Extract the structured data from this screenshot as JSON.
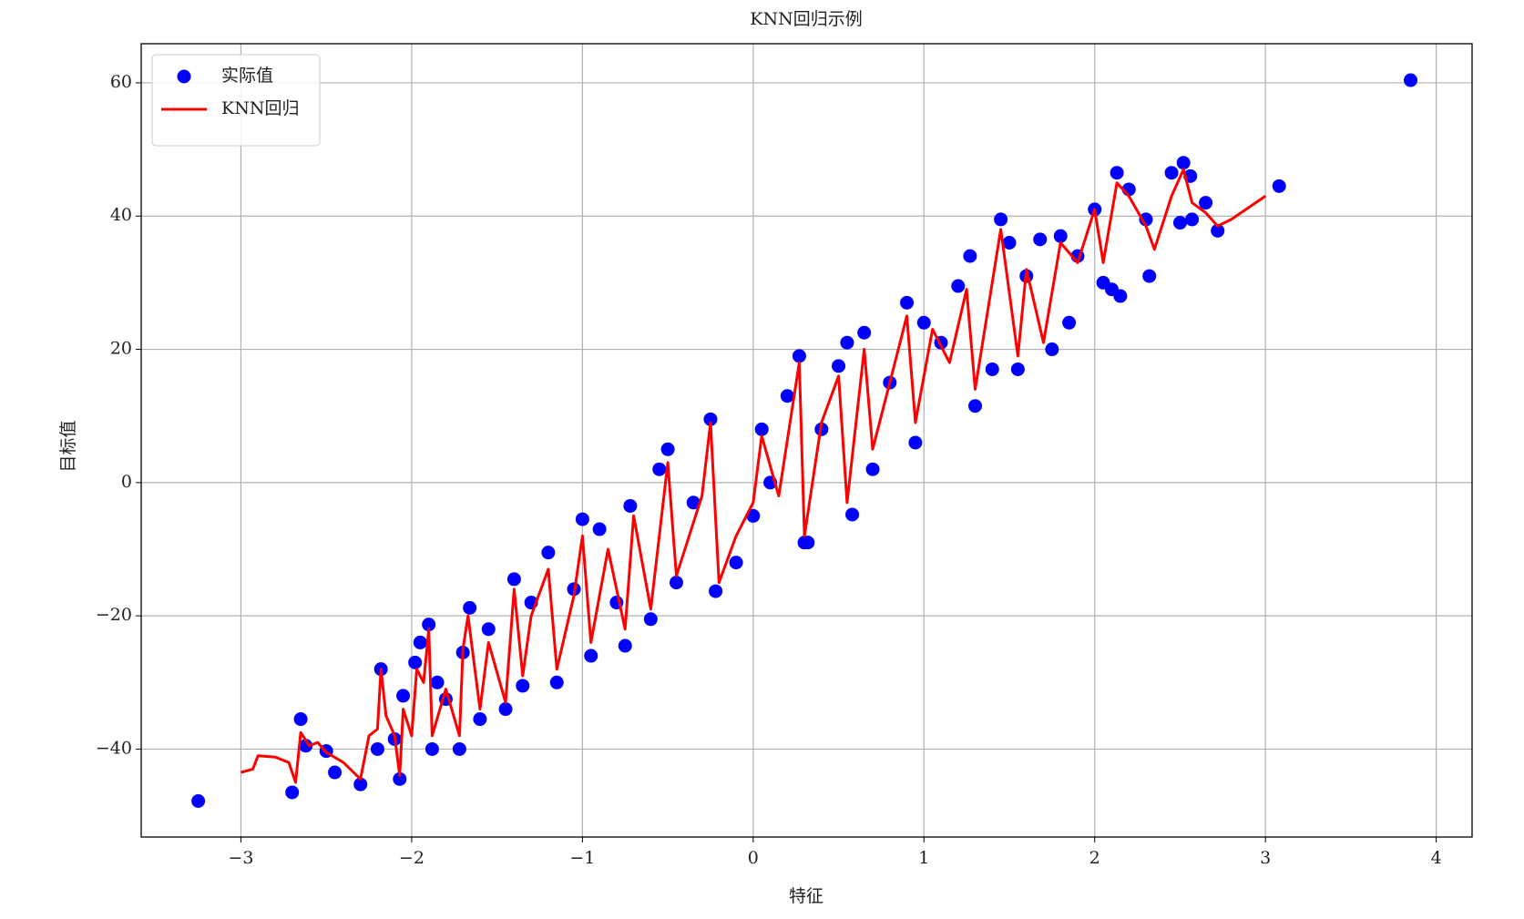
{
  "chart_data": {
    "type": "scatter",
    "title": "KNN回归示例",
    "x_label": "特征",
    "y_label": "目标值",
    "xlim": [
      -3.584,
      4.21
    ],
    "ylim": [
      -53.2,
      65.87
    ],
    "xticks": [
      {
        "value": -3,
        "label": "−3"
      },
      {
        "value": -2,
        "label": "−2"
      },
      {
        "value": -1,
        "label": "−1"
      },
      0,
      1,
      2,
      3,
      4
    ],
    "yticks": [
      {
        "value": -40,
        "label": "−40"
      },
      {
        "value": -20,
        "label": "−20"
      },
      0,
      20,
      40,
      60
    ],
    "grid": true,
    "legend": "upper left",
    "series": [
      {
        "name": "实际值",
        "type": "scatter",
        "color": "#0000ff",
        "x": [
          -3.25,
          -2.7,
          -2.65,
          -2.62,
          -2.5,
          -2.45,
          -2.3,
          -2.2,
          -2.18,
          -2.1,
          -2.07,
          -2.05,
          -1.98,
          -1.95,
          -1.9,
          -1.88,
          -1.85,
          -1.8,
          -1.72,
          -1.7,
          -1.66,
          -1.6,
          -1.55,
          -1.45,
          -1.4,
          -1.35,
          -1.3,
          -1.2,
          -1.15,
          -1.05,
          -1.0,
          -0.95,
          -0.9,
          -0.8,
          -0.75,
          -0.72,
          -0.6,
          -0.55,
          -0.5,
          -0.45,
          -0.35,
          -0.25,
          -0.22,
          -0.1,
          0,
          0.05,
          0.1,
          0.2,
          0.27,
          0.3,
          0.32,
          0.4,
          0.5,
          0.55,
          0.58,
          0.65,
          0.7,
          0.8,
          0.9,
          0.95,
          1.0,
          1.1,
          1.2,
          1.27,
          1.3,
          1.4,
          1.45,
          1.5,
          1.55,
          1.6,
          1.68,
          1.75,
          1.8,
          1.85,
          1.9,
          2.0,
          2.05,
          2.1,
          2.13,
          2.15,
          2.2,
          2.3,
          2.32,
          2.45,
          2.5,
          2.52,
          2.56,
          2.57,
          2.65,
          2.72,
          3.08,
          3.85
        ],
        "values": [
          -47.8,
          -46.5,
          -35.5,
          -39.5,
          -40.3,
          -43.5,
          -45.3,
          -40,
          -28,
          -38.5,
          -44.5,
          -32,
          -27,
          -24,
          -21.3,
          -40,
          -30,
          -32.5,
          -40,
          -25.5,
          -18.8,
          -35.5,
          -22,
          -34,
          -14.5,
          -30.5,
          -18,
          -10.5,
          -30,
          -16,
          -5.5,
          -26,
          -7,
          -18,
          -24.5,
          -3.5,
          -20.5,
          2,
          5,
          -15,
          -3,
          9.5,
          -16.3,
          -12,
          -5,
          8,
          0,
          13,
          19,
          -9,
          -9,
          8,
          17.5,
          21,
          -4.8,
          22.5,
          2,
          15,
          27,
          6,
          24,
          21,
          29.5,
          34,
          11.5,
          17,
          39.5,
          36,
          17,
          31,
          36.5,
          20,
          37,
          24,
          34,
          41,
          30,
          29,
          46.5,
          28,
          44,
          39.5,
          31,
          46.5,
          39,
          48,
          46,
          39.5,
          42,
          37.8,
          44.5,
          60.4
        ]
      },
      {
        "name": "KNN回归",
        "type": "line",
        "color": "#ff0000",
        "x": [
          -3,
          -2.93,
          -2.9,
          -2.8,
          -2.72,
          -2.68,
          -2.65,
          -2.6,
          -2.55,
          -2.5,
          -2.4,
          -2.3,
          -2.25,
          -2.2,
          -2.18,
          -2.15,
          -2.1,
          -2.07,
          -2.05,
          -2.0,
          -1.97,
          -1.93,
          -1.9,
          -1.88,
          -1.8,
          -1.72,
          -1.7,
          -1.67,
          -1.6,
          -1.55,
          -1.45,
          -1.4,
          -1.35,
          -1.3,
          -1.2,
          -1.15,
          -1.05,
          -1.0,
          -0.95,
          -0.85,
          -0.75,
          -0.7,
          -0.6,
          -0.5,
          -0.45,
          -0.3,
          -0.25,
          -0.2,
          -0.1,
          0,
          0.05,
          0.15,
          0.27,
          0.3,
          0.4,
          0.5,
          0.55,
          0.65,
          0.7,
          0.8,
          0.9,
          0.95,
          1.05,
          1.15,
          1.25,
          1.3,
          1.45,
          1.55,
          1.6,
          1.7,
          1.8,
          1.9,
          2.0,
          2.05,
          2.13,
          2.2,
          2.3,
          2.35,
          2.4,
          2.45,
          2.52,
          2.57,
          2.65,
          2.72,
          2.8,
          3.0
        ],
        "values": [
          -43.5,
          -43,
          -41,
          -41.2,
          -42,
          -45,
          -37.5,
          -39.5,
          -39,
          -40.5,
          -42,
          -44.5,
          -38,
          -37,
          -28,
          -35,
          -38,
          -44,
          -34,
          -38,
          -28,
          -30,
          -22,
          -38,
          -31,
          -38,
          -25,
          -20,
          -34,
          -24,
          -33,
          -16,
          -29,
          -20,
          -13,
          -28,
          -17,
          -8,
          -24,
          -10,
          -22,
          -5,
          -19,
          3,
          -14,
          -2,
          9,
          -15,
          -8,
          -3,
          7,
          -2,
          18,
          -8,
          9,
          16,
          -3,
          20,
          5,
          15,
          25,
          9,
          23,
          18,
          29,
          14,
          38,
          19,
          32,
          21,
          36,
          33,
          41,
          33,
          45,
          43,
          38.5,
          35,
          39,
          43,
          47,
          42,
          40.5,
          38.5,
          39.5,
          43
        ]
      }
    ]
  }
}
